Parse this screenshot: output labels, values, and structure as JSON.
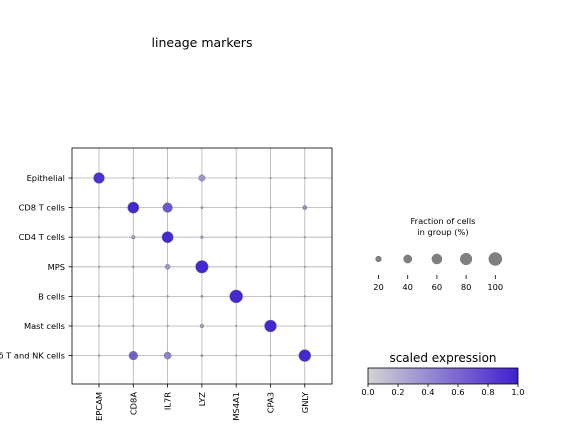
{
  "chart_data": {
    "type": "dotplot",
    "title": "lineage markers",
    "genes": [
      "EPCAM",
      "CD8A",
      "IL7R",
      "LYZ",
      "MS4A1",
      "CPA3",
      "GNLY"
    ],
    "groups": [
      "Epithelial",
      "CD8 T cells",
      "CD4 T cells",
      "MPS",
      "B cells",
      "Mast cells",
      "γδ T and NK cells"
    ],
    "fraction_in_group_pct": [
      [
        70,
        2,
        2,
        25,
        1,
        1,
        1
      ],
      [
        1,
        75,
        55,
        3,
        1,
        1,
        10
      ],
      [
        1,
        8,
        75,
        5,
        1,
        1,
        2
      ],
      [
        1,
        2,
        15,
        95,
        1,
        1,
        1
      ],
      [
        1,
        2,
        2,
        3,
        100,
        1,
        1
      ],
      [
        1,
        1,
        1,
        8,
        1,
        85,
        1
      ],
      [
        2,
        45,
        30,
        3,
        1,
        1,
        85
      ]
    ],
    "scaled_expression": [
      [
        0.9,
        0.2,
        0.2,
        0.35,
        0.1,
        0.1,
        0.1
      ],
      [
        0.1,
        0.95,
        0.7,
        0.3,
        0.1,
        0.1,
        0.4
      ],
      [
        0.1,
        0.3,
        0.95,
        0.3,
        0.1,
        0.1,
        0.2
      ],
      [
        0.1,
        0.2,
        0.35,
        0.95,
        0.1,
        0.1,
        0.1
      ],
      [
        0.1,
        0.2,
        0.2,
        0.3,
        0.95,
        0.1,
        0.1
      ],
      [
        0.1,
        0.1,
        0.1,
        0.3,
        0.1,
        0.95,
        0.1
      ],
      [
        0.2,
        0.65,
        0.45,
        0.3,
        0.1,
        0.1,
        0.95
      ]
    ],
    "size_legend": {
      "title_lines": [
        "Fraction of cells",
        "in group (%)"
      ],
      "ticks": [
        20,
        40,
        60,
        80,
        100
      ]
    },
    "colorbar": {
      "title": "scaled expression",
      "ticks": [
        "0.0",
        "0.2",
        "0.4",
        "0.6",
        "0.8",
        "1.0"
      ],
      "color_low": "#d3d3d3",
      "color_high": "#3f1fd0"
    },
    "grid": true
  }
}
